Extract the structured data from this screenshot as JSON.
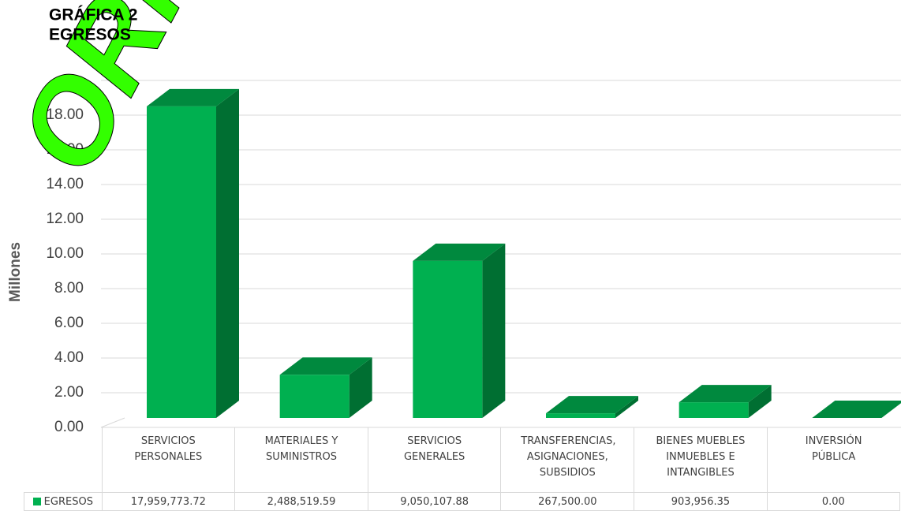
{
  "chart_data": {
    "type": "bar3d",
    "title": "GRÁFICA 2",
    "subtitle": "EGRESOS",
    "watermark": "ORIGINAL",
    "y_label": "Millones",
    "categories": [
      "SERVICIOS PERSONALES",
      "MATERIALES Y SUMINISTROS",
      "SERVICIOS GENERALES",
      "TRANSFERENCIAS, ASIGNACIONES, SUBSIDIOS",
      "BIENES MUEBLES INMUEBLES E INTANGIBLES",
      "INVERSIÓN PÚBLICA"
    ],
    "series": [
      {
        "name": "EGRESOS",
        "color": "#00b050",
        "values": [
          17.95977372,
          2.48851959,
          9.05010788,
          0.2675,
          0.90395635,
          0
        ],
        "value_labels": [
          "17,959,773.72",
          "2,488,519.59",
          "9,050,107.88",
          "267,500.00",
          "903,956.35",
          "0.00"
        ]
      }
    ],
    "ylim": [
      0,
      20
    ],
    "yticks": [
      {
        "value": 0,
        "label": "0.00"
      },
      {
        "value": 2,
        "label": "2.00"
      },
      {
        "value": 4,
        "label": "4.00"
      },
      {
        "value": 6,
        "label": "6.00"
      },
      {
        "value": 8,
        "label": "8.00"
      },
      {
        "value": 10,
        "label": "10.00"
      },
      {
        "value": 12,
        "label": "12.00"
      },
      {
        "value": 14,
        "label": "14.00"
      },
      {
        "value": 16,
        "label": "16.00"
      },
      {
        "value": 18,
        "label": "18.00"
      }
    ],
    "grid": true
  }
}
